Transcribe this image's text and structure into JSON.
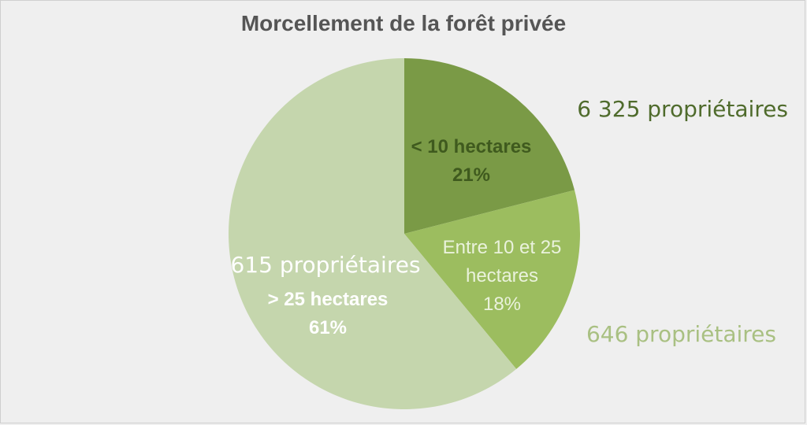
{
  "chart_data": {
    "type": "pie",
    "title": "Morcellement de la forêt privée",
    "slices": [
      {
        "category": "< 10 hectares",
        "percent_label": "21%",
        "value": 21,
        "owners_label": "6 325 propriétaires",
        "color": "#7a9a46",
        "label_color": "#3f5a1e",
        "owners_color": "#4f6b2c"
      },
      {
        "category_lines": [
          "Entre 10 et 25",
          "hectares"
        ],
        "percent_label": "18%",
        "value": 18,
        "owners_label": "646 propriétaires",
        "color": "#9cbd5f",
        "label_color": "#eaf2dc",
        "owners_color": "#a9c082"
      },
      {
        "category": "> 25 hectares",
        "percent_label": "61%",
        "value": 61,
        "owners_label": "615 propriétaires",
        "color": "#c5d6ad",
        "label_color": "#ffffff",
        "owners_color": "#ffffff"
      }
    ],
    "legend": "none"
  }
}
